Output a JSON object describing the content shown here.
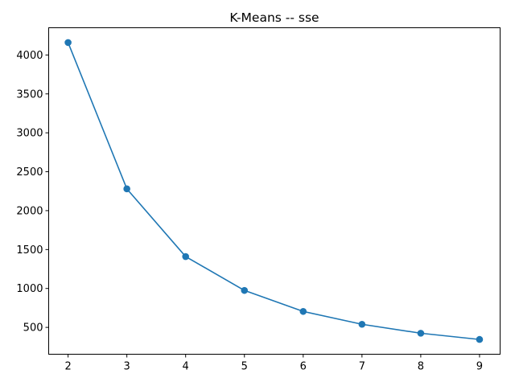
{
  "chart_data": {
    "type": "line",
    "title": "K-Means -- sse",
    "xlabel": "",
    "ylabel": "",
    "x": [
      2,
      3,
      4,
      5,
      6,
      7,
      8,
      9
    ],
    "series": [
      {
        "values": [
          4160,
          2280,
          1410,
          975,
          705,
          540,
          425,
          345
        ],
        "color": "#1f77b4",
        "marker": "circle"
      }
    ],
    "xlim": [
      1.67,
      9.35
    ],
    "ylim": [
      155,
      4350
    ],
    "xticks": [
      2,
      3,
      4,
      5,
      6,
      7,
      8,
      9
    ],
    "yticks": [
      500,
      1000,
      1500,
      2000,
      2500,
      3000,
      3500,
      4000
    ],
    "grid": false,
    "legend": "none"
  }
}
